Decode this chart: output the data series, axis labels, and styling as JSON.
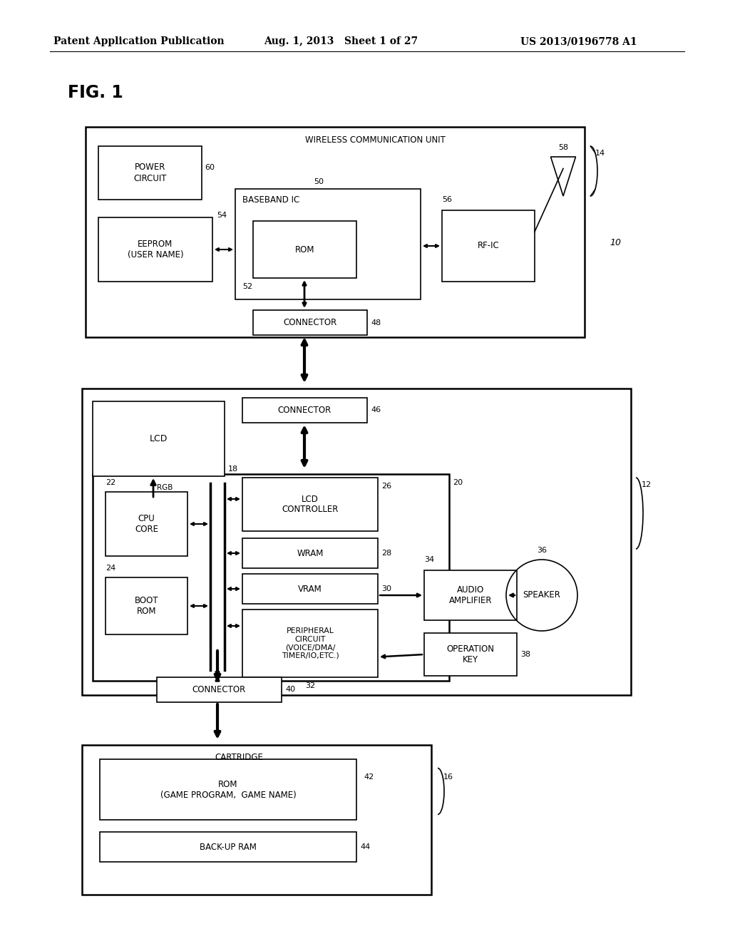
{
  "bg_color": "#ffffff",
  "header_left": "Patent Application Publication",
  "header_mid": "Aug. 1, 2013   Sheet 1 of 27",
  "header_right": "US 2013/0196778 A1",
  "fig_label": "FIG. 1",
  "ref_10": "10",
  "ref_12": "12",
  "ref_14": "14",
  "ref_16": "16",
  "ref_18": "18",
  "ref_20": "20",
  "ref_22": "22",
  "ref_24": "24",
  "ref_26": "26",
  "ref_28": "28",
  "ref_30": "30",
  "ref_32": "32",
  "ref_34": "34",
  "ref_36": "36",
  "ref_38": "38",
  "ref_40": "40",
  "ref_42": "42",
  "ref_44": "44",
  "ref_46": "46",
  "ref_48": "48",
  "ref_50": "50",
  "ref_52": "52",
  "ref_54": "54",
  "ref_56": "56",
  "ref_58": "58",
  "ref_60": "60"
}
